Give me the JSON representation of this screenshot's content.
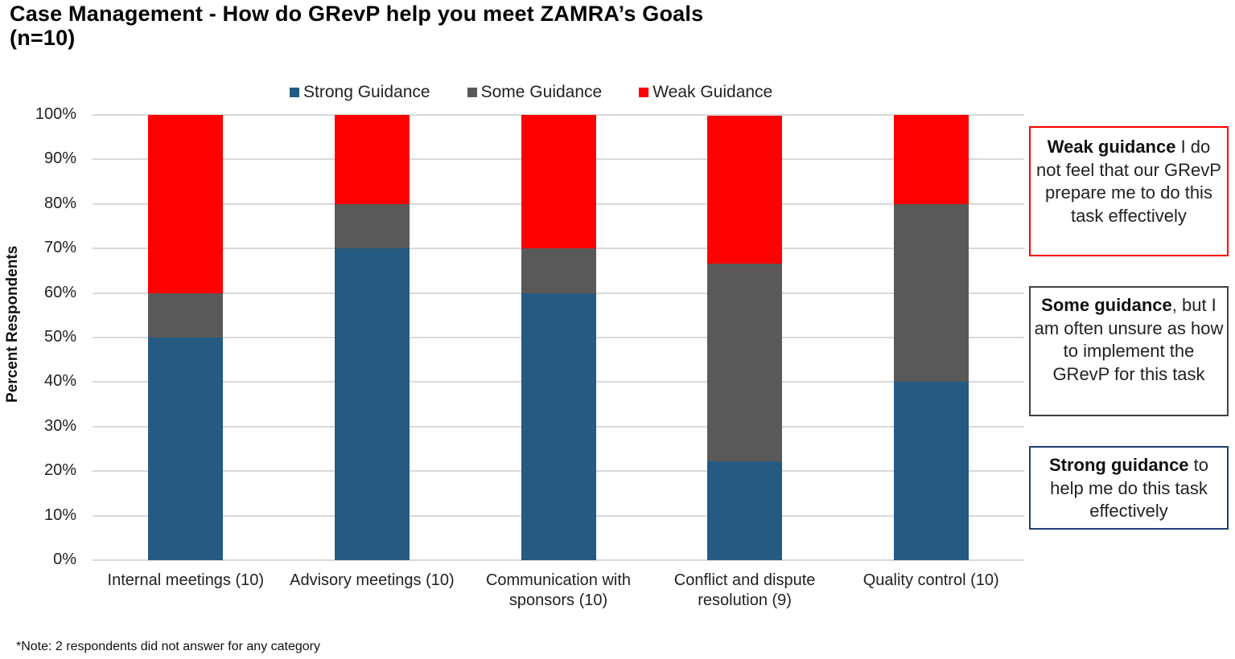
{
  "chart_data": {
    "type": "bar",
    "stacked": true,
    "normalized_percent": true,
    "title": "Case Management - How do GRevP help you meet ZAMRA’s Goals (n=10)",
    "title_lines": [
      "Case Management - How do GRevP help you meet ZAMRA’s Goals",
      "(n=10)"
    ],
    "xlabel": "",
    "ylabel": "Percent Respondents",
    "ylim": [
      0,
      100
    ],
    "yticks": [
      "0%",
      "10%",
      "20%",
      "30%",
      "40%",
      "50%",
      "60%",
      "70%",
      "80%",
      "90%",
      "100%"
    ],
    "grid": true,
    "legend_position": "top",
    "categories": [
      "Internal meetings (10)",
      "Advisory meetings (10)",
      "Communication with sponsors (10)",
      "Conflict and dispute resolution (9)",
      "Quality control (10)"
    ],
    "category_lines": [
      [
        "Internal meetings (10)"
      ],
      [
        "Advisory meetings (10)"
      ],
      [
        "Communication with",
        "sponsors (10)"
      ],
      [
        "Conflict and dispute",
        "resolution (9)"
      ],
      [
        "Quality control (10)"
      ]
    ],
    "series": [
      {
        "name": "Strong Guidance",
        "color": "#255A82",
        "values": [
          50,
          70,
          60,
          22.2,
          40
        ]
      },
      {
        "name": "Some Guidance",
        "color": "#595959",
        "values": [
          10,
          10,
          10,
          44.4,
          40
        ]
      },
      {
        "name": "Weak Guidance",
        "color": "#FF0000",
        "values": [
          40,
          20,
          30,
          33.3,
          20
        ]
      }
    ],
    "annotations": [
      {
        "bold": "Weak guidance",
        "text": " I do not feel that our GRevP prepare me to do this task effectively",
        "border": "#FF0000"
      },
      {
        "bold": "Some guidance",
        "text": ", but I am often unsure as how to implement the GRevP for this task",
        "border": "#404040"
      },
      {
        "bold": "Strong guidance",
        "text": " to help me do this task effectively",
        "border": "#1F3F73"
      }
    ],
    "footnote": "*Note: 2 respondents did not answer for any category"
  }
}
